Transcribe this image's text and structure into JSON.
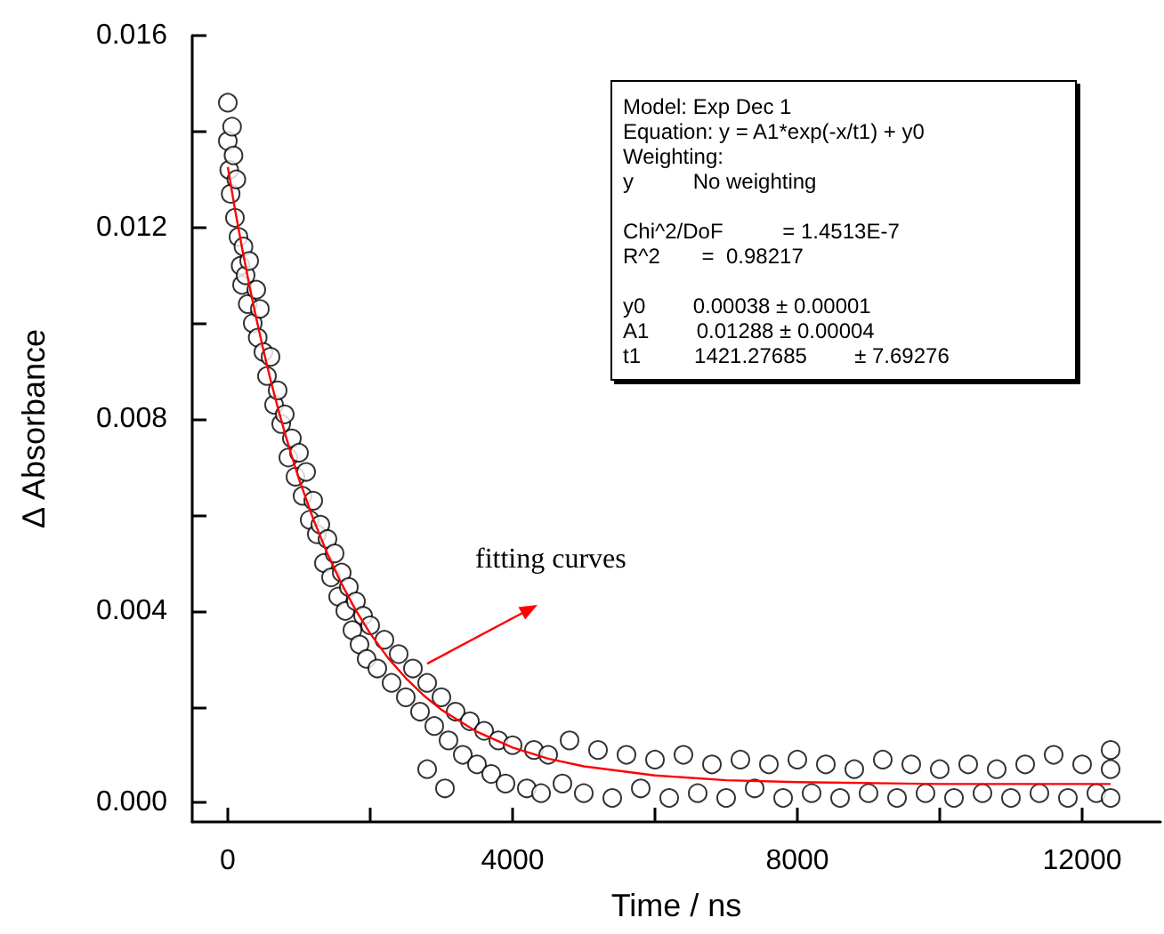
{
  "chart_data": {
    "type": "scatter",
    "xlabel": "Time / ns",
    "ylabel": "Δ Absorbance",
    "xlim": [
      -500,
      13100
    ],
    "ylim": [
      -0.0004,
      0.016
    ],
    "xticks": [
      0,
      {
        "value": 2000,
        "label": null
      },
      4000,
      {
        "value": 6000,
        "label": null
      },
      8000,
      {
        "value": 10000,
        "label": null
      },
      12000
    ],
    "yticks": [
      {
        "value": 0,
        "label": "0.000"
      },
      {
        "value": 0.002,
        "label": null
      },
      {
        "value": 0.004,
        "label": "0.004"
      },
      {
        "value": 0.006,
        "label": null
      },
      {
        "value": 0.008,
        "label": "0.008"
      },
      {
        "value": 0.01,
        "label": null
      },
      {
        "value": 0.012,
        "label": "0.012"
      },
      {
        "value": 0.014,
        "label": null
      },
      {
        "value": 0.016,
        "label": "0.016"
      }
    ],
    "grid": false,
    "marker": "circle",
    "annotations": [
      {
        "text": "fitting curves",
        "x": 2800,
        "y": 0.0029
      },
      "Model: Exp Dec 1",
      "Equation: y = A1*exp(-x/t1) + y0",
      "Weighting:",
      "y          No weighting",
      "Chi^2/DoF          = 1.4513E-7",
      "R^2       =  0.98217",
      "y0        0.00038 ± 0.00001",
      "A1        0.01288 ± 0.00004",
      "t1         1421.27685        ± 7.69276"
    ],
    "series": [
      {
        "color": "#000000",
        "x": [
          0,
          0,
          20,
          40,
          60,
          80,
          100,
          120,
          150,
          180,
          200,
          220,
          250,
          280,
          300,
          350,
          400,
          420,
          450,
          500,
          550,
          600,
          650,
          700,
          750,
          800,
          850,
          900,
          950,
          1000,
          1050,
          1100,
          1150,
          1200,
          1250,
          1300,
          1350,
          1400,
          1450,
          1500,
          1550,
          1600,
          1650,
          1700,
          1750,
          1800,
          1850,
          1900,
          1950,
          2000,
          2100,
          2200,
          2300,
          2400,
          2500,
          2600,
          2700,
          2800,
          2800,
          2900,
          3000,
          3050,
          3100,
          3200,
          3300,
          3400,
          3500,
          3600,
          3700,
          3800,
          3900,
          4000,
          4200,
          4300,
          4400,
          4500,
          4700,
          4800,
          5000,
          5200,
          5400,
          5600,
          5800,
          6000,
          6200,
          6400,
          6600,
          6800,
          7000,
          7200,
          7400,
          7600,
          7800,
          8000,
          8200,
          8400,
          8600,
          8800,
          9000,
          9200,
          9400,
          9600,
          9800,
          10000,
          10200,
          10400,
          10600,
          10800,
          11000,
          11200,
          11400,
          11600,
          11800,
          12000,
          12200,
          12400,
          12400,
          12400
        ],
        "values": [
          0.0146,
          0.0138,
          0.0132,
          0.0127,
          0.0141,
          0.0135,
          0.0122,
          0.013,
          0.0118,
          0.0112,
          0.0108,
          0.0116,
          0.011,
          0.0104,
          0.0113,
          0.01,
          0.0107,
          0.0097,
          0.0103,
          0.0094,
          0.0089,
          0.0093,
          0.0083,
          0.0086,
          0.0079,
          0.0081,
          0.0072,
          0.0076,
          0.0068,
          0.0073,
          0.0064,
          0.0069,
          0.0059,
          0.0063,
          0.0056,
          0.0058,
          0.005,
          0.0055,
          0.0047,
          0.0052,
          0.0043,
          0.0048,
          0.004,
          0.0045,
          0.0036,
          0.0042,
          0.0033,
          0.0039,
          0.003,
          0.0037,
          0.0028,
          0.0034,
          0.0025,
          0.0031,
          0.0022,
          0.0028,
          0.0019,
          0.0025,
          0.0007,
          0.0016,
          0.0022,
          0.0003,
          0.0013,
          0.0019,
          0.001,
          0.0017,
          0.0008,
          0.0015,
          0.0006,
          0.0013,
          0.0004,
          0.0012,
          0.0003,
          0.0011,
          0.0002,
          0.001,
          0.0004,
          0.0013,
          0.0002,
          0.0011,
          0.0001,
          0.001,
          0.0003,
          0.0009,
          0.0001,
          0.001,
          0.0002,
          0.0008,
          0.0001,
          0.0009,
          0.0003,
          0.0008,
          0.0001,
          0.0009,
          0.0002,
          0.0008,
          0.0001,
          0.0007,
          0.0002,
          0.0009,
          0.0001,
          0.0008,
          0.0002,
          0.0007,
          0.0001,
          0.0008,
          0.0002,
          0.0007,
          0.0001,
          0.0008,
          0.0002,
          0.001,
          0.0001,
          0.0008,
          0.0002,
          0.0007,
          0.0011,
          0.0001
        ]
      },
      {
        "type": "line",
        "color": "#ff0000",
        "marker": "none",
        "line_style": "solid",
        "x": [
          0,
          100,
          200,
          300,
          400,
          500,
          600,
          700,
          800,
          900,
          1000,
          1200,
          1400,
          1600,
          1800,
          2000,
          2250,
          2500,
          2750,
          3000,
          3500,
          4000,
          4500,
          5000,
          6000,
          7000,
          8000,
          10000,
          12400
        ],
        "values": [
          0.01326,
          0.01238,
          0.01157,
          0.01081,
          0.0101,
          0.00944,
          0.00882,
          0.00825,
          0.00772,
          0.00722,
          0.00675,
          0.00592,
          0.00519,
          0.00456,
          0.00401,
          0.00353,
          0.00302,
          0.0026,
          0.00224,
          0.00194,
          0.00148,
          0.00115,
          0.00092,
          0.00076,
          0.00057,
          0.00047,
          0.00043,
          0.00039,
          0.00039
        ]
      }
    ]
  }
}
